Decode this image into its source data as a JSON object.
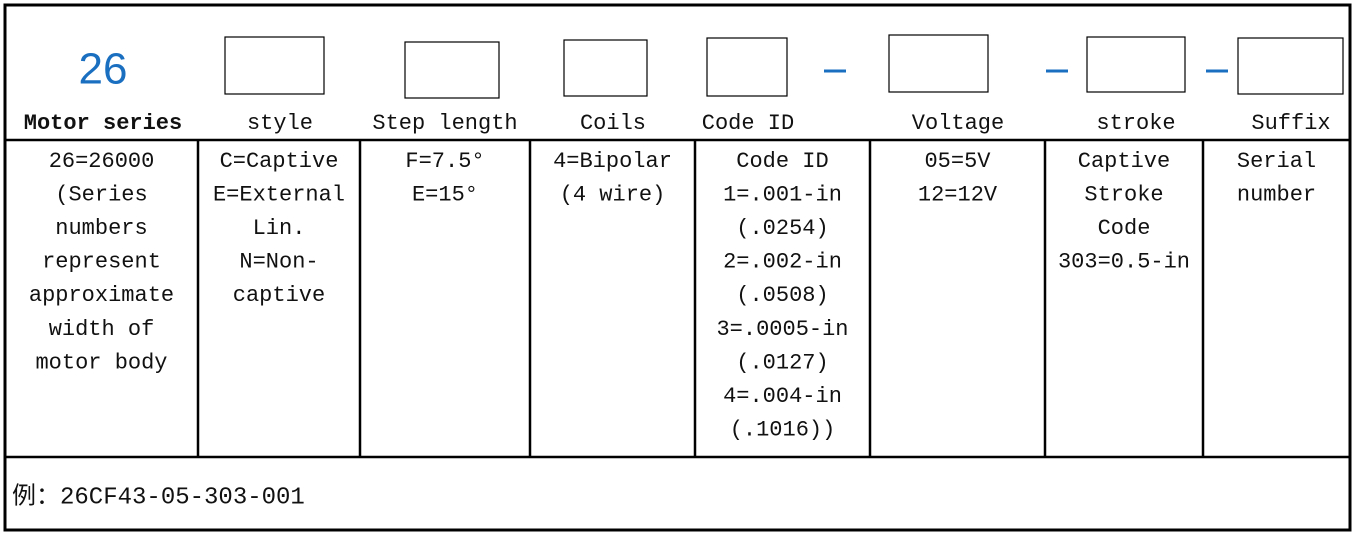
{
  "header": {
    "series_number": "26",
    "labels": [
      "Motor series",
      "style",
      "Step length",
      "Coils",
      "Code ID",
      "Voltage",
      "stroke",
      "Suffix"
    ]
  },
  "table": {
    "cells": [
      [
        "26=26000",
        "(Series",
        "numbers",
        "represent",
        "approximate",
        "width of",
        "motor body"
      ],
      [
        "C=Captive",
        "E=External",
        "Lin.",
        "N=Non-",
        "captive"
      ],
      [
        "F=7.5°",
        "E=15°"
      ],
      [
        "4=Bipolar",
        "(4 wire)"
      ],
      [
        "Code ID",
        "1=.001-in",
        "(.0254)",
        "2=.002-in",
        "(.0508)",
        "3=.0005-in",
        "(.0127)",
        "4=.004-in",
        "(.1016))"
      ],
      [
        "05=5V",
        "12=12V"
      ],
      [
        "Captive",
        "Stroke",
        "Code",
        "303=0.5-in"
      ],
      [
        "Serial",
        "number"
      ]
    ]
  },
  "footer": {
    "example": "例：26CF43-05-303-001"
  }
}
